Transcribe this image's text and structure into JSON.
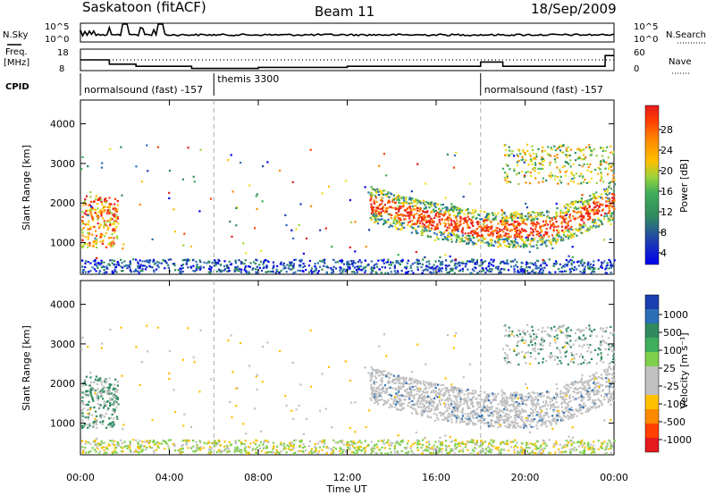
{
  "header": {
    "station": "Saskatoon (fitACF)",
    "beam": "Beam 11",
    "date": "18/Sep/2009"
  },
  "nsky_panel": {
    "left_label": "N.Sky",
    "right_label": "N.Search",
    "left_ticks": [
      "10^5",
      "10^0"
    ],
    "right_ticks": [
      "10^5",
      "10^0"
    ]
  },
  "freq_panel": {
    "left_label_1": "Freq.",
    "left_label_2": "[MHz]",
    "right_label": "Nave",
    "left_ticks": [
      "18",
      "8"
    ],
    "right_ticks": [
      "60",
      "0"
    ]
  },
  "cpid_panel": {
    "label": "CPID",
    "segments": [
      {
        "start_hour": 0,
        "label": "normalsound (fast) -157"
      },
      {
        "start_hour": 6,
        "label": "themis 3300"
      },
      {
        "start_hour": 18,
        "label": "normalsound (fast) -157"
      }
    ]
  },
  "power_panel": {
    "ylabel": "Slant Range [km]",
    "cbar_label": "Power [dB]",
    "cbar_ticks": [
      "28",
      "24",
      "20",
      "16",
      "12",
      "8",
      "4"
    ],
    "cbar_colors": [
      "#e41a1c",
      "#ff4000",
      "#ff8a00",
      "#ffc000",
      "#f0e020",
      "#9bd23c",
      "#3fae5a",
      "#2f8a5f",
      "#2b6fb5",
      "#1f3fb0",
      "#0000ee"
    ]
  },
  "velocity_panel": {
    "ylabel": "Slant Range [km]",
    "cbar_label": "Velocity [m s⁻¹]",
    "cbar_ticks": [
      "1000",
      "500",
      "100",
      "25",
      "-25",
      "-100",
      "-500",
      "-1000"
    ],
    "cbar_colors": [
      "#1a3fb0",
      "#2b6fb5",
      "#2f8a5f",
      "#3fae5a",
      "#7fd04a",
      "#c0c0c0",
      "#c0c0c0",
      "#ffc000",
      "#ff8a00",
      "#ff4000",
      "#e41a1c"
    ]
  },
  "xaxis": {
    "label": "Time UT",
    "tick_labels": [
      "00:00",
      "04:00",
      "08:00",
      "12:00",
      "16:00",
      "20:00",
      "00:00"
    ]
  },
  "chart_data": {
    "type": "heatmap",
    "x_range_hours": [
      0,
      24
    ],
    "y_range_km": [
      200,
      4600
    ],
    "yticks": [
      1000,
      2000,
      3000,
      4000
    ],
    "xticks_hours": [
      0,
      4,
      8,
      12,
      16,
      20,
      24
    ],
    "nsky_log": true,
    "freq_mhz": [
      {
        "t": 0,
        "f": 13
      },
      {
        "t": 1.3,
        "f": 11
      },
      {
        "t": 2.5,
        "f": 10
      },
      {
        "t": 5,
        "f": 9
      },
      {
        "t": 8,
        "f": 9.5
      },
      {
        "t": 12,
        "f": 10
      },
      {
        "t": 18,
        "f": 12
      },
      {
        "t": 19,
        "f": 10
      },
      {
        "t": 23.6,
        "f": 15
      },
      {
        "t": 24,
        "f": 15
      }
    ],
    "nave_dotted_level": 30,
    "scatter_regions": [
      {
        "name": "ground-scatter-near",
        "t_start": 0,
        "t_end": 24,
        "r_min": 200,
        "r_max": 500
      },
      {
        "name": "early-echo",
        "t_start": 0,
        "t_end": 1.7,
        "r_min": 900,
        "r_max": 2300
      },
      {
        "name": "evening-band",
        "t_start": 13,
        "t_end": 24,
        "r_min": 1100,
        "r_max": 2400
      },
      {
        "name": "far-band",
        "t_start": 19,
        "t_end": 24,
        "r_min": 2500,
        "r_max": 3500
      }
    ]
  }
}
